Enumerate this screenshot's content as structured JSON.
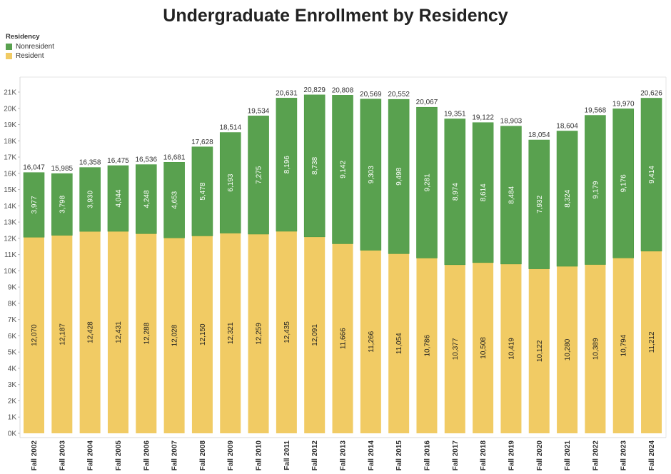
{
  "chart_data": {
    "type": "bar",
    "stacked": true,
    "title": "Undergraduate Enrollment by Residency",
    "legend": {
      "title": "Residency",
      "position": "top-left",
      "entries": [
        "Nonresident",
        "Resident"
      ]
    },
    "categories": [
      "Fall 2002",
      "Fall 2003",
      "Fall 2004",
      "Fall 2005",
      "Fall 2006",
      "Fall 2007",
      "Fall 2008",
      "Fall 2009",
      "Fall 2010",
      "Fall 2011",
      "Fall 2012",
      "Fall 2013",
      "Fall 2014",
      "Fall 2015",
      "Fall 2016",
      "Fall 2017",
      "Fall 2018",
      "Fall 2019",
      "Fall 2020",
      "Fall 2021",
      "Fall 2022",
      "Fall 2023",
      "Fall 2024"
    ],
    "series": [
      {
        "name": "Resident",
        "color": "#F1CB64",
        "values": [
          12070,
          12187,
          12428,
          12431,
          12288,
          12028,
          12150,
          12321,
          12259,
          12435,
          12091,
          11666,
          11266,
          11054,
          10786,
          10377,
          10508,
          10419,
          10122,
          10280,
          10389,
          10794,
          11212
        ]
      },
      {
        "name": "Nonresident",
        "color": "#59A14F",
        "values": [
          3977,
          3798,
          3930,
          4044,
          4248,
          4653,
          5478,
          6193,
          7275,
          8196,
          8738,
          9142,
          9303,
          9498,
          9281,
          8974,
          8614,
          8484,
          7932,
          8324,
          9179,
          9176,
          9414
        ]
      }
    ],
    "totals": [
      16047,
      15985,
      16358,
      16475,
      16536,
      16681,
      17628,
      18514,
      19534,
      20631,
      20829,
      20808,
      20569,
      20552,
      20067,
      19351,
      19122,
      18903,
      18054,
      18604,
      19568,
      19970,
      20626
    ],
    "yticks": [
      "0K",
      "1K",
      "2K",
      "3K",
      "4K",
      "5K",
      "6K",
      "7K",
      "8K",
      "9K",
      "10K",
      "11K",
      "12K",
      "13K",
      "14K",
      "15K",
      "16K",
      "17K",
      "18K",
      "19K",
      "20K",
      "21K"
    ],
    "ylim": [
      0,
      21000
    ],
    "xlabel": "",
    "ylabel": "",
    "grid": false
  }
}
